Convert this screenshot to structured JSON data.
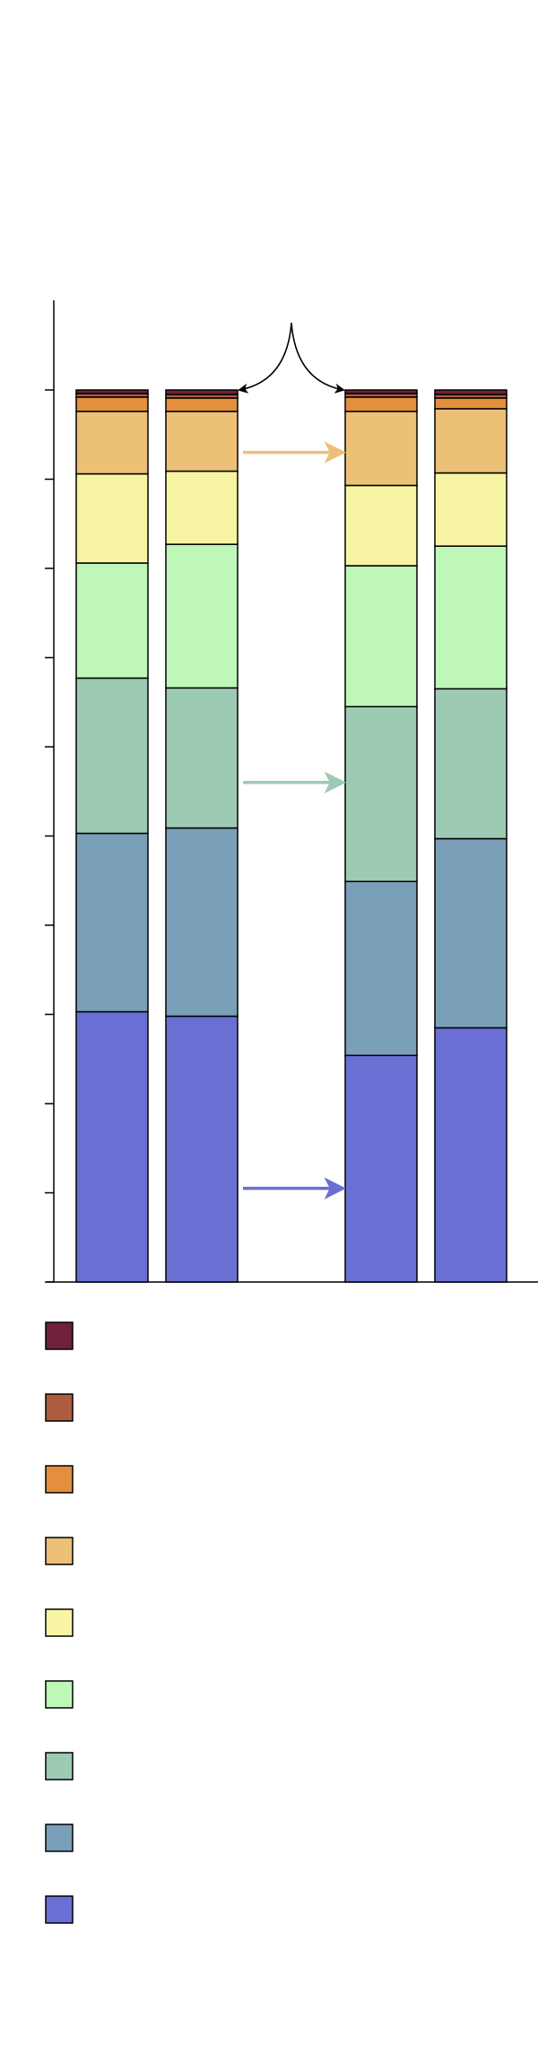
{
  "chart_data": {
    "type": "bar",
    "stacked": true,
    "title": "",
    "xlabel": "",
    "ylabel": "",
    "ylim": [
      0,
      1
    ],
    "yticks": [
      0,
      0.1,
      0.2,
      0.3,
      0.4,
      0.5,
      0.6,
      0.7,
      0.8,
      0.9,
      1.0
    ],
    "categories": [
      "",
      "",
      "",
      ""
    ],
    "series": [
      {
        "color": "#6a6fd3",
        "values": [
          0.303,
          0.298,
          0.254,
          0.285
        ]
      },
      {
        "color": "#7a9fb8",
        "values": [
          0.2,
          0.211,
          0.195,
          0.212
        ]
      },
      {
        "color": "#9dcab3",
        "values": [
          0.174,
          0.157,
          0.196,
          0.168
        ]
      },
      {
        "color": "#bef7b8",
        "values": [
          0.129,
          0.161,
          0.158,
          0.16
        ]
      },
      {
        "color": "#f7f5a3",
        "values": [
          0.1,
          0.082,
          0.09,
          0.082
        ]
      },
      {
        "color": "#edc077",
        "values": [
          0.07,
          0.067,
          0.083,
          0.072
        ]
      },
      {
        "color": "#e38f3e",
        "values": [
          0.016,
          0.015,
          0.016,
          0.012
        ]
      },
      {
        "color": "#ad5d3d",
        "values": [
          0.004,
          0.004,
          0.004,
          0.004
        ]
      },
      {
        "color": "#702038",
        "values": [
          0.004,
          0.005,
          0.004,
          0.005
        ]
      }
    ],
    "legend": {
      "placement": "bottom-left",
      "entries": [
        {
          "color": "#702038"
        },
        {
          "color": "#ad5d3d"
        },
        {
          "color": "#e38f3e"
        },
        {
          "color": "#edc077"
        },
        {
          "color": "#f7f5a3"
        },
        {
          "color": "#bef7b8"
        },
        {
          "color": "#9dcab3"
        },
        {
          "color": "#7a9fb8"
        },
        {
          "color": "#6a6fd3"
        }
      ]
    },
    "annotations": [
      {
        "type": "curved-double-arrow",
        "between_bars": [
          1,
          2
        ],
        "color": "#000000"
      },
      {
        "type": "arrow",
        "between_bars": [
          1,
          2
        ],
        "level": 0.93,
        "color": "#edc077"
      },
      {
        "type": "arrow",
        "between_bars": [
          1,
          2
        ],
        "level": 0.56,
        "color": "#9dcab3"
      },
      {
        "type": "arrow",
        "between_bars": [
          1,
          2
        ],
        "level": 0.105,
        "color": "#6a6fd3"
      }
    ]
  }
}
